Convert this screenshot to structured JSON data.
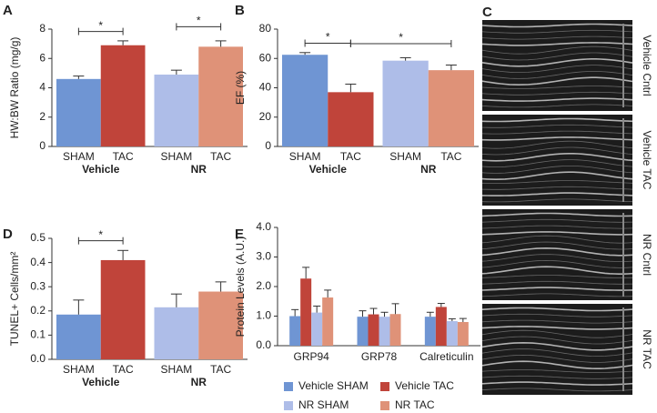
{
  "chart_data": [
    {
      "type": "bar",
      "panel": "A",
      "ylabel": "HW:BW Ratio (mg/g)",
      "categories": [
        "SHAM",
        "TAC",
        "SHAM",
        "TAC"
      ],
      "groups": [
        "Vehicle",
        "NR"
      ],
      "values": [
        4.6,
        6.9,
        4.9,
        6.8
      ],
      "errors": [
        0.2,
        0.3,
        0.3,
        0.4
      ],
      "colors": [
        "#6f95d3",
        "#c0443a",
        "#aebde8",
        "#df9278"
      ],
      "ylim": [
        0,
        8
      ],
      "yticks": [
        0,
        2,
        4,
        6,
        8
      ],
      "brackets": [
        {
          "label": "*",
          "from": 0,
          "to": 1
        },
        {
          "label": "*",
          "from": 2,
          "to": 3
        }
      ]
    },
    {
      "type": "bar",
      "panel": "B",
      "ylabel": "EF (%)",
      "categories": [
        "SHAM",
        "TAC",
        "SHAM",
        "TAC"
      ],
      "groups": [
        "Vehicle",
        "NR"
      ],
      "values": [
        62.5,
        37,
        58.5,
        52
      ],
      "errors": [
        1.5,
        5.5,
        2,
        3.5
      ],
      "colors": [
        "#6f95d3",
        "#c0443a",
        "#aebde8",
        "#df9278"
      ],
      "ylim": [
        0,
        80
      ],
      "yticks": [
        0,
        20,
        40,
        60,
        80
      ],
      "brackets": [
        {
          "label": "*",
          "from": 0,
          "to": 1
        },
        {
          "label": "*",
          "from": 1,
          "to": 3
        }
      ]
    },
    {
      "type": "bar",
      "panel": "D",
      "ylabel": "TUNEL+ Cells/mm²",
      "categories": [
        "SHAM",
        "TAC",
        "SHAM",
        "TAC"
      ],
      "groups": [
        "Vehicle",
        "NR"
      ],
      "values": [
        0.185,
        0.41,
        0.215,
        0.28
      ],
      "errors": [
        0.06,
        0.04,
        0.055,
        0.04
      ],
      "colors": [
        "#6f95d3",
        "#c0443a",
        "#aebde8",
        "#df9278"
      ],
      "ylim": [
        0,
        0.5
      ],
      "yticks": [
        {
          "value": 0,
          "label": "0.0"
        },
        0.1,
        0.2,
        0.3,
        0.4,
        0.5
      ],
      "brackets": [
        {
          "label": "*",
          "from": 0,
          "to": 1
        }
      ]
    },
    {
      "type": "grouped_bar",
      "panel": "E",
      "ylabel": "Protein Levels (A.U.)",
      "categories": [
        "GRP94",
        "GRP78",
        "Calreticulin"
      ],
      "series": [
        {
          "name": "Vehicle SHAM",
          "color": "#6f95d3",
          "values": [
            1.0,
            0.98,
            0.98
          ],
          "errors": [
            0.22,
            0.2,
            0.15
          ]
        },
        {
          "name": "Vehicle TAC",
          "color": "#c0443a",
          "values": [
            2.27,
            1.06,
            1.31
          ],
          "errors": [
            0.38,
            0.2,
            0.12
          ]
        },
        {
          "name": "NR SHAM",
          "color": "#aebde8",
          "values": [
            1.12,
            0.98,
            0.83
          ],
          "errors": [
            0.22,
            0.15,
            0.08
          ]
        },
        {
          "name": "NR TAC",
          "color": "#df9278",
          "values": [
            1.63,
            1.07,
            0.8
          ],
          "errors": [
            0.25,
            0.35,
            0.12
          ]
        }
      ],
      "ylim": [
        0,
        4
      ],
      "yticks": [
        {
          "value": 0,
          "label": "0.0"
        },
        {
          "value": 1,
          "label": "1.0"
        },
        {
          "value": 2,
          "label": "2.0"
        },
        {
          "value": 3,
          "label": "3.0"
        },
        {
          "value": 4,
          "label": "4.0"
        }
      ]
    }
  ],
  "panel_c": {
    "panel": "C",
    "labels": [
      "Vehicle Cntrl",
      "Vehicle TAC",
      "NR Cntrl",
      "NR TAC"
    ]
  }
}
